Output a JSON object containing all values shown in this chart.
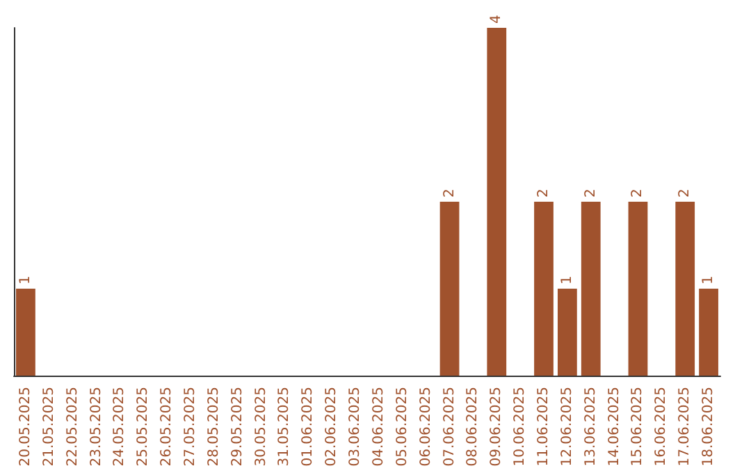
{
  "chart_data": {
    "type": "bar",
    "categories": [
      "20.05.2025",
      "21.05.2025",
      "22.05.2025",
      "23.05.2025",
      "24.05.2025",
      "25.05.2025",
      "26.05.2025",
      "27.05.2025",
      "28.05.2025",
      "29.05.2025",
      "30.05.2025",
      "31.05.2025",
      "01.06.2025",
      "02.06.2025",
      "03.06.2025",
      "04.06.2025",
      "05.06.2025",
      "06.06.2025",
      "07.06.2025",
      "08.06.2025",
      "09.06.2025",
      "10.06.2025",
      "11.06.2025",
      "12.06.2025",
      "13.06.2025",
      "14.06.2025",
      "15.06.2025",
      "16.06.2025",
      "17.06.2025",
      "18.06.2025"
    ],
    "values": [
      1,
      0,
      0,
      0,
      0,
      0,
      0,
      0,
      0,
      0,
      0,
      0,
      0,
      0,
      0,
      0,
      0,
      0,
      2,
      0,
      4,
      0,
      2,
      1,
      2,
      0,
      2,
      0,
      2,
      1
    ],
    "value_labels": [
      "1",
      null,
      null,
      null,
      null,
      null,
      null,
      null,
      null,
      null,
      null,
      null,
      null,
      null,
      null,
      null,
      null,
      null,
      "2",
      null,
      "4",
      null,
      "2",
      "1",
      "2",
      null,
      "2",
      null,
      "2",
      "1"
    ],
    "color": "#a0522d",
    "grid": false,
    "tick_labels": "x"
  }
}
